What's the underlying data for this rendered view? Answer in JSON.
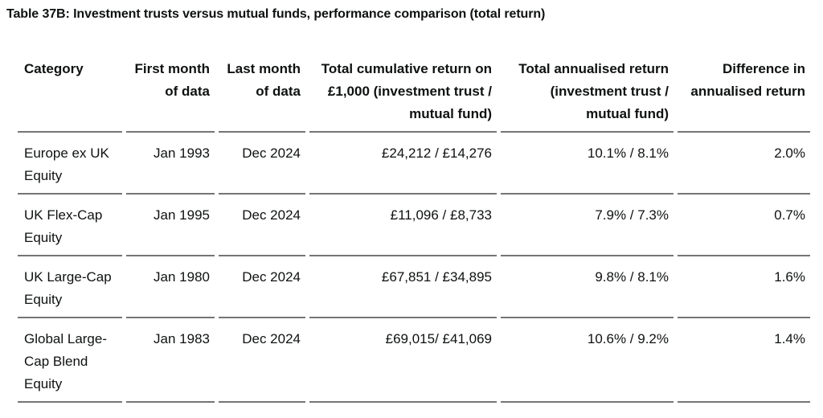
{
  "chart_data": {
    "type": "table",
    "title": "Table 37B: Investment trusts versus mutual funds, performance comparison (total return)",
    "columns": [
      "Category",
      "First month\nof data",
      "Last month\nof data",
      "Total cumulative return on\n£1,000 (investment trust /\nmutual fund)",
      "Total annualised return\n(investment trust /\nmutual fund)",
      "Difference in\nannualised return"
    ],
    "rows": [
      {
        "category": "Europe ex UK\nEquity",
        "first_month": "Jan 1993",
        "last_month": "Dec 2024",
        "cumulative_return": "£24,212 / £14,276",
        "annualised_return": "10.1% / 8.1%",
        "difference_in_annualised_return": "2.0%"
      },
      {
        "category": "UK Flex-Cap\nEquity",
        "first_month": "Jan 1995",
        "last_month": "Dec 2024",
        "cumulative_return": "£11,096 / £8,733",
        "annualised_return": "7.9% / 7.3%",
        "difference_in_annualised_return": "0.7%"
      },
      {
        "category": "UK Large-Cap\nEquity",
        "first_month": "Jan 1980",
        "last_month": "Dec 2024",
        "cumulative_return": "£67,851 / £34,895",
        "annualised_return": "9.8% / 8.1%",
        "difference_in_annualised_return": "1.6%"
      },
      {
        "category": "Global Large-\nCap Blend\nEquity",
        "first_month": "Jan 1983",
        "last_month": "Dec 2024",
        "cumulative_return": "£69,015/ £41,069",
        "annualised_return": "10.6% / 9.2%",
        "difference_in_annualised_return": "1.4%"
      }
    ],
    "layout_hints": {
      "numeric_columns_alignment": "right",
      "category_column_alignment": "left",
      "grid": "horizontal-rules-only"
    },
    "colors": {
      "text": "#0f1111",
      "rule": "#757575",
      "background": "#ffffff"
    }
  }
}
